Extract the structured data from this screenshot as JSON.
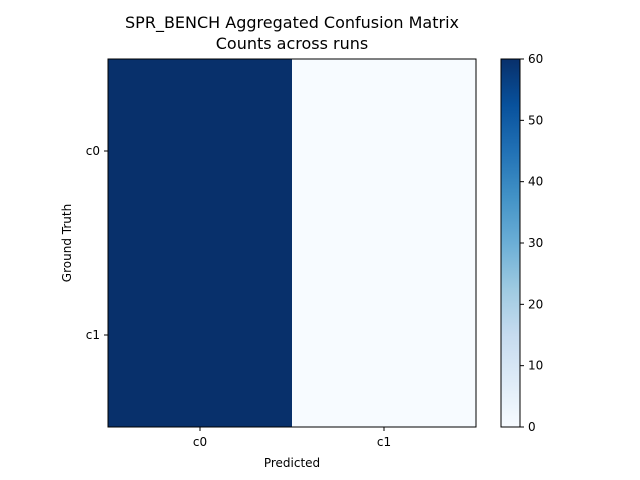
{
  "chart_data": {
    "type": "heatmap",
    "title": "SPR_BENCH Aggregated Confusion Matrix",
    "subtitle": "Counts across runs",
    "xlabel": "Predicted",
    "ylabel": "Ground Truth",
    "x_categories": [
      "c0",
      "c1"
    ],
    "y_categories": [
      "c0",
      "c1"
    ],
    "values": [
      [
        60,
        0
      ],
      [
        60,
        0
      ]
    ],
    "colormap": "Blues",
    "colorbar": {
      "range": [
        0,
        60
      ],
      "ticks": [
        "0",
        "10",
        "20",
        "30",
        "40",
        "50",
        "60"
      ]
    },
    "colors": {
      "low": "#f7fbff",
      "high": "#08306b"
    }
  }
}
